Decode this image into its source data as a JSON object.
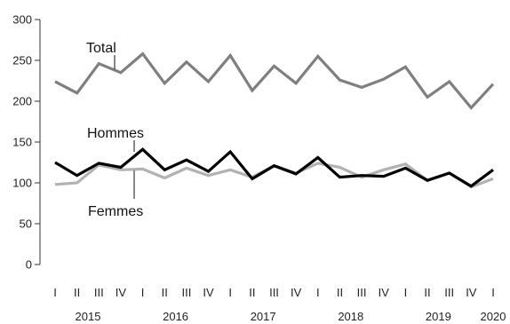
{
  "chart_data": {
    "type": "line",
    "x": [
      "I",
      "II",
      "III",
      "IV",
      "I",
      "II",
      "III",
      "IV",
      "I",
      "II",
      "III",
      "IV",
      "I",
      "II",
      "III",
      "IV",
      "I",
      "II",
      "III",
      "IV",
      "I"
    ],
    "year_labels": [
      {
        "label": "2015",
        "at_index": 1.5
      },
      {
        "label": "2016",
        "at_index": 5.5
      },
      {
        "label": "2017",
        "at_index": 9.5
      },
      {
        "label": "2018",
        "at_index": 13.5
      },
      {
        "label": "2019",
        "at_index": 17.5
      },
      {
        "label": "2020",
        "at_index": 20
      }
    ],
    "ylim": [
      0,
      300
    ],
    "yticks": [
      0,
      50,
      100,
      150,
      200,
      250,
      300
    ],
    "series": [
      {
        "name": "Total",
        "color": "#7f7f7f",
        "values": [
          224,
          210,
          246,
          235,
          258,
          222,
          248,
          224,
          256,
          213,
          243,
          222,
          255,
          226,
          217,
          227,
          242,
          205,
          224,
          192,
          221
        ]
      },
      {
        "name": "Femmes",
        "color": "#b2b2b2",
        "values": [
          98,
          100,
          122,
          116,
          117,
          106,
          118,
          109,
          116,
          107,
          121,
          112,
          124,
          119,
          107,
          116,
          123,
          103,
          112,
          95,
          105
        ]
      },
      {
        "name": "Hommes",
        "color": "#000000",
        "values": [
          125,
          109,
          124,
          119,
          141,
          116,
          128,
          114,
          138,
          105,
          121,
          111,
          131,
          107,
          109,
          108,
          118,
          103,
          112,
          96,
          116
        ]
      }
    ],
    "labels": {
      "total": "Total",
      "hommes": "Hommes",
      "femmes": "Femmes"
    }
  }
}
